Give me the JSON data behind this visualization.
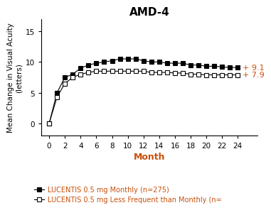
{
  "title": "AMD-4",
  "xlabel": "Month",
  "ylabel": "Mean Change in Visual Acuity\n(letters)",
  "ylim": [
    -2,
    17
  ],
  "yticks": [
    0,
    5,
    10,
    15
  ],
  "xticks": [
    0,
    2,
    4,
    6,
    8,
    10,
    12,
    14,
    16,
    18,
    20,
    22,
    24
  ],
  "monthly_x": [
    0,
    1,
    2,
    3,
    4,
    5,
    6,
    7,
    8,
    9,
    10,
    11,
    12,
    13,
    14,
    15,
    16,
    17,
    18,
    19,
    20,
    21,
    22,
    23,
    24
  ],
  "monthly_y": [
    0,
    5,
    7.5,
    8.0,
    9.0,
    9.5,
    9.8,
    10.0,
    10.2,
    10.5,
    10.5,
    10.5,
    10.2,
    10.0,
    10.0,
    9.8,
    9.8,
    9.8,
    9.5,
    9.5,
    9.3,
    9.3,
    9.2,
    9.1,
    9.1
  ],
  "less_x": [
    0,
    1,
    2,
    3,
    4,
    5,
    6,
    7,
    8,
    9,
    10,
    11,
    12,
    13,
    14,
    15,
    16,
    17,
    18,
    19,
    20,
    21,
    22,
    23,
    24
  ],
  "less_y": [
    0,
    4.3,
    6.5,
    7.5,
    8.0,
    8.3,
    8.5,
    8.5,
    8.5,
    8.5,
    8.5,
    8.5,
    8.5,
    8.3,
    8.3,
    8.3,
    8.2,
    8.2,
    8.0,
    8.0,
    7.9,
    7.9,
    7.9,
    7.9,
    7.9
  ],
  "monthly_label": "LUCENTIS 0.5 mg Monthly (n=275)",
  "less_label": "LUCENTIS 0.5 mg Less Frequent than Monthly (n=",
  "annotation_monthly": "+ 9.1",
  "annotation_less": "+ 7.9",
  "line_color": "#000000",
  "annotation_color": "#c8500a",
  "title_color": "#000000",
  "axis_label_color": "#000000",
  "xlabel_color": "#c8500a",
  "legend_text_color": "#c8500a",
  "tick_color": "#000000",
  "background_color": "#ffffff"
}
